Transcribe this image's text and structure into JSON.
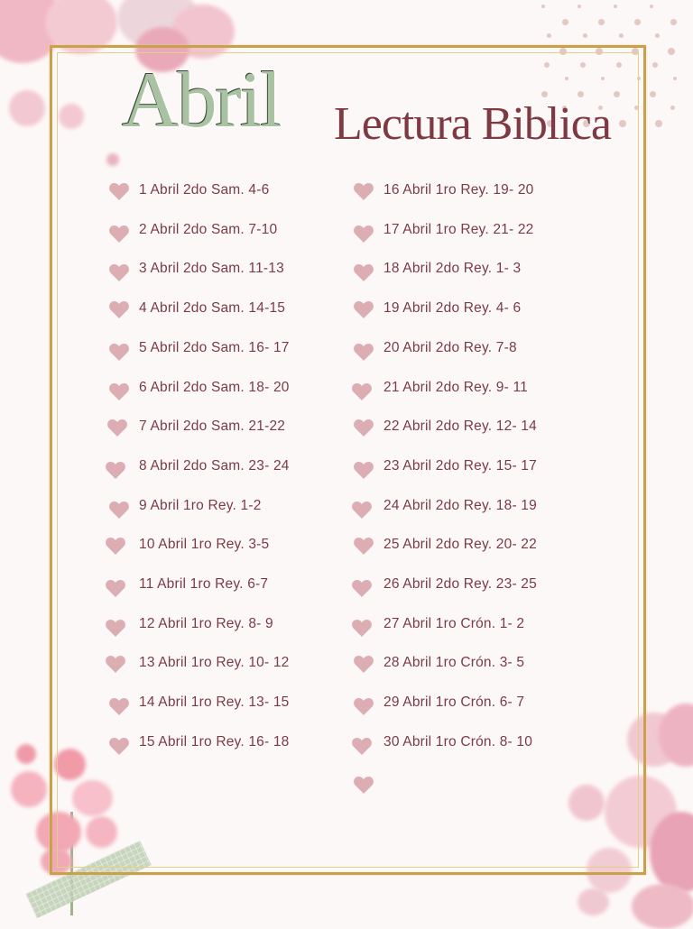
{
  "header": {
    "month": "Abril",
    "title": "Lectura Biblica"
  },
  "colors": {
    "text": "#7a3b45",
    "heart": "#dcaeb4",
    "frame": "#c9a14a",
    "month": "#a9c2a2",
    "title": "#7e3a42"
  },
  "icons": {
    "bullet": "heart-icon"
  },
  "readings_left": [
    "1 Abril 2do Sam. 4-6",
    "2 Abril 2do Sam. 7-10",
    "3 Abril 2do Sam. 11-13",
    "4 Abril 2do Sam. 14-15",
    "5 Abril 2do Sam. 16- 17",
    "6 Abril 2do Sam. 18- 20",
    "7 Abril 2do Sam. 21-22",
    "8 Abril 2do Sam. 23- 24",
    "9 Abril 1ro Rey. 1-2",
    "10 Abril 1ro Rey. 3-5",
    "11 Abril 1ro Rey. 6-7",
    "12 Abril 1ro Rey. 8- 9",
    "13 Abril 1ro Rey. 10- 12",
    "14 Abril 1ro Rey. 13- 15",
    "15 Abril 1ro Rey. 16- 18"
  ],
  "readings_right": [
    "16 Abril 1ro Rey. 19- 20",
    "17 Abril 1ro Rey. 21- 22",
    "18 Abril 2do Rey. 1- 3",
    "19 Abril 2do Rey. 4- 6",
    "20 Abril 2do Rey. 7-8",
    "21 Abril 2do Rey. 9- 11",
    "22 Abril 2do Rey. 12- 14",
    "23 Abril 2do Rey. 15- 17",
    "24 Abril 2do Rey. 18- 19",
    "25 Abril 2do Rey. 20- 22",
    "26 Abril 2do Rey. 23- 25",
    "27 Abril 1ro Crón. 1- 2",
    "28 Abril 1ro Crón. 3- 5",
    "29 Abril 1ro Crón. 6- 7",
    "30 Abril 1ro Crón. 8- 10"
  ]
}
